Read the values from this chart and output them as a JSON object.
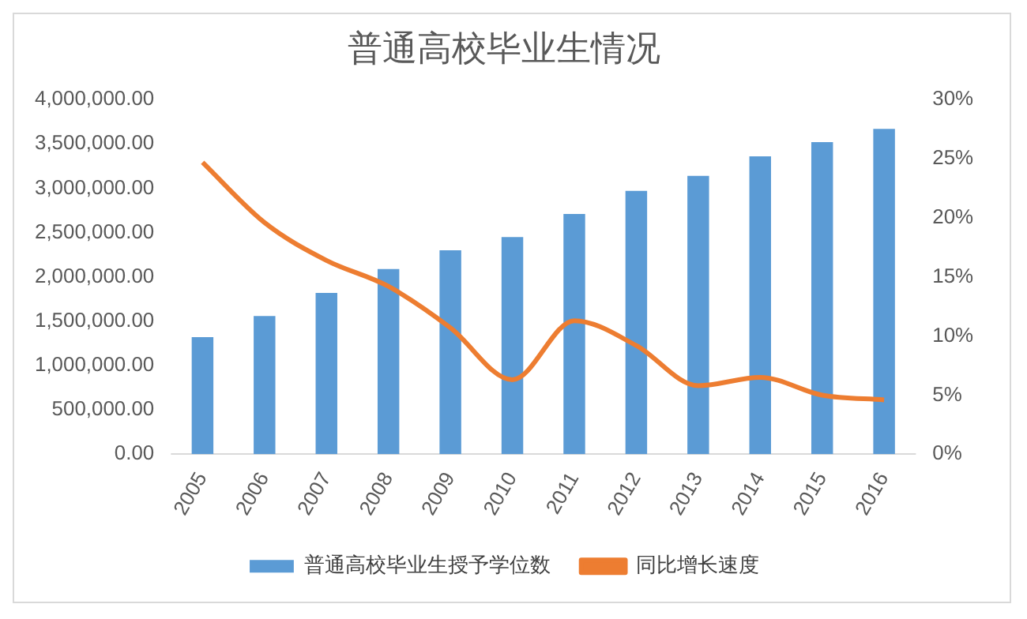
{
  "chart_data": {
    "type": "bar",
    "title": "普通高校毕业生情况",
    "categories": [
      "2005",
      "2006",
      "2007",
      "2008",
      "2009",
      "2010",
      "2011",
      "2012",
      "2013",
      "2014",
      "2015",
      "2016"
    ],
    "series": [
      {
        "name": "普通高校毕业生授予学位数",
        "color": "#5b9bd5",
        "values": [
          1320000,
          1560000,
          1820000,
          2090000,
          2300000,
          2450000,
          2710000,
          2970000,
          3140000,
          3360000,
          3520000,
          3670000
        ]
      },
      {
        "name": "同比增长速度",
        "type": "line",
        "axis": "y2",
        "color": "#ed7d31",
        "values": [
          24.7,
          19.6,
          16.4,
          14.2,
          10.7,
          6.3,
          11.3,
          9.2,
          5.8,
          6.5,
          5.0,
          4.6
        ]
      }
    ],
    "ylim": [
      0,
      4000000
    ],
    "yticks": [
      {
        "value": 0,
        "label": "0.00"
      },
      {
        "value": 500000,
        "label": "500,000.00"
      },
      {
        "value": 1000000,
        "label": "1,000,000.00"
      },
      {
        "value": 1500000,
        "label": "1,500,000.00"
      },
      {
        "value": 2000000,
        "label": "2,000,000.00"
      },
      {
        "value": 2500000,
        "label": "2,500,000.00"
      },
      {
        "value": 3000000,
        "label": "3,000,000.00"
      },
      {
        "value": 3500000,
        "label": "3,500,000.00"
      },
      {
        "value": 4000000,
        "label": "4,000,000.00"
      }
    ],
    "y2lim": [
      0,
      30
    ],
    "y2ticks": [
      {
        "value": 0,
        "label": "0%"
      },
      {
        "value": 5,
        "label": "5%"
      },
      {
        "value": 10,
        "label": "10%"
      },
      {
        "value": 15,
        "label": "15%"
      },
      {
        "value": 20,
        "label": "20%"
      },
      {
        "value": 25,
        "label": "25%"
      },
      {
        "value": 30,
        "label": "30%"
      }
    ],
    "legend": "bottom",
    "grid": false,
    "marker": "none"
  }
}
